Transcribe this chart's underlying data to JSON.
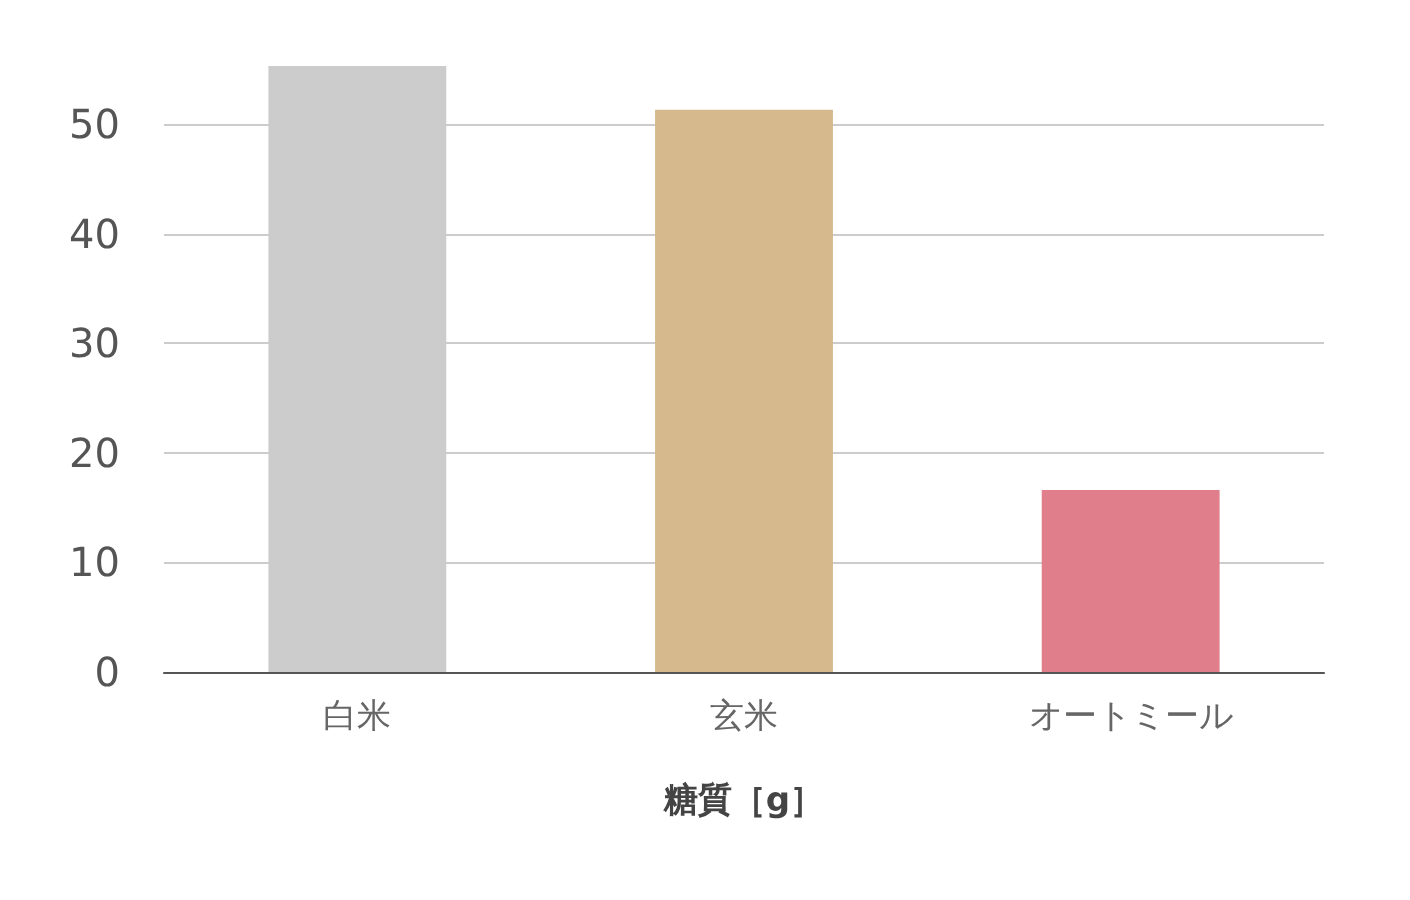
{
  "chart_data": {
    "type": "bar",
    "xlabel": "糖質［g］",
    "categories": [
      "白米",
      "玄米",
      "オートミール"
    ],
    "values": [
      55.3,
      51.3,
      16.6
    ],
    "colors": [
      "#cccccc",
      "#d7b98e",
      "#e07e8b"
    ],
    "ylim": [
      0,
      55.3
    ],
    "yticks": [
      0,
      10,
      20,
      30,
      40,
      50
    ],
    "grid": "y"
  }
}
